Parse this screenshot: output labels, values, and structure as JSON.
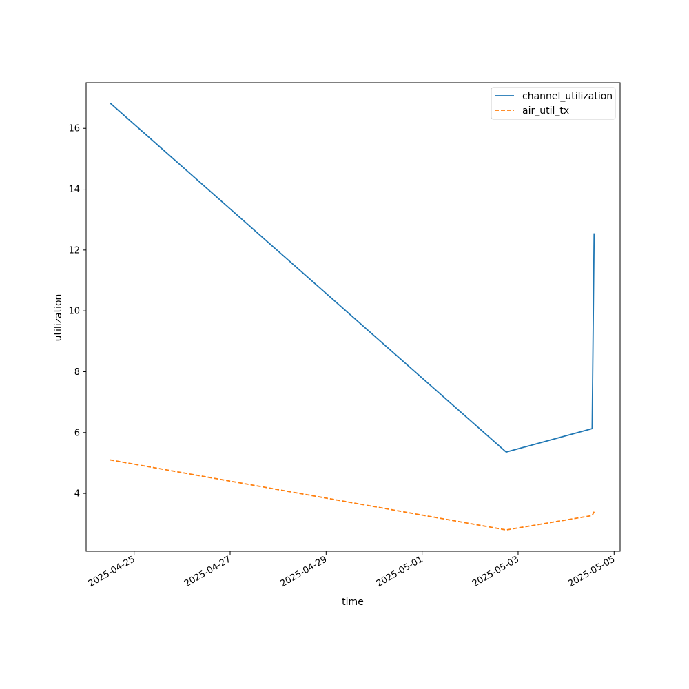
{
  "chart_data": {
    "type": "line",
    "xlabel": "time",
    "ylabel": "utilization",
    "x_type": "datetime",
    "xlim": [
      "2025-04-24T00:00",
      "2025-05-05T03:00"
    ],
    "ylim": [
      2.1,
      17.5
    ],
    "x_ticks": [
      "2025-04-25",
      "2025-04-27",
      "2025-04-29",
      "2025-05-01",
      "2025-05-03",
      "2025-05-05"
    ],
    "y_ticks": [
      4,
      6,
      8,
      10,
      12,
      14,
      16
    ],
    "grid": false,
    "legend_position": "top-right",
    "series": [
      {
        "name": "channel_utilization",
        "color": "#1f77b4",
        "style": "solid",
        "x": [
          "2025-04-24T12:00",
          "2025-05-02T18:00",
          "2025-05-04T13:00",
          "2025-05-04T14:00"
        ],
        "y": [
          16.83,
          5.36,
          6.13,
          12.55
        ]
      },
      {
        "name": "air_util_tx",
        "color": "#ff7f0e",
        "style": "dashed",
        "x": [
          "2025-04-24T12:00",
          "2025-05-02T18:00",
          "2025-05-04T13:00",
          "2025-05-04T14:00"
        ],
        "y": [
          5.1,
          2.8,
          3.27,
          3.4
        ]
      }
    ]
  }
}
